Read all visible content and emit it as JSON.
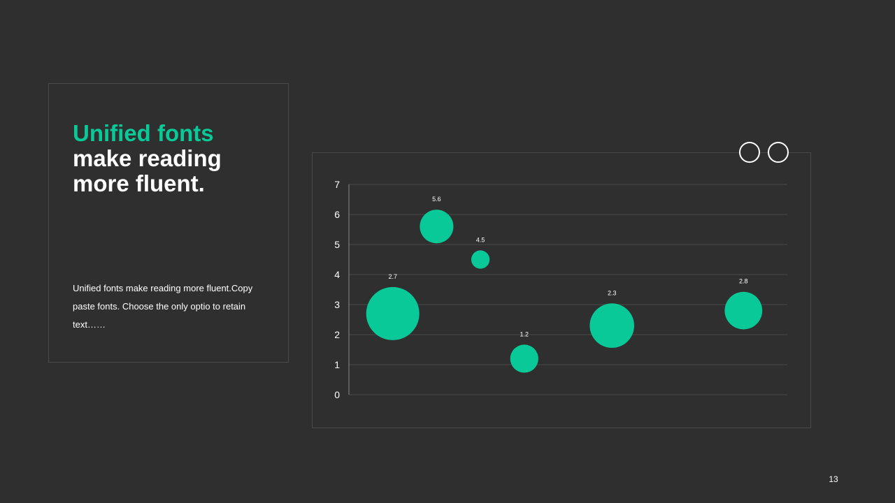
{
  "slide": {
    "heading_accent": "Unified fonts",
    "heading_rest": "make reading more fluent.",
    "body": "Unified fonts make reading more fluent.Copy paste fonts. Choose the only optio to retain text……",
    "page_number": "13"
  },
  "colors": {
    "background": "#2f2f2f",
    "accent": "#08c997",
    "text": "#ffffff",
    "grid": "#4a4a4a"
  },
  "chart_data": {
    "type": "scatter",
    "title": "",
    "xlabel": "",
    "ylabel": "",
    "ylim": [
      0,
      7
    ],
    "yticks": [
      "0",
      "1",
      "2",
      "3",
      "4",
      "5",
      "6",
      "7"
    ],
    "grid": true,
    "legend": "none",
    "points": [
      {
        "x": 1,
        "y": 2.7,
        "size": 10,
        "label": "2.7"
      },
      {
        "x": 2,
        "y": 5.6,
        "size": 4,
        "label": "5.6"
      },
      {
        "x": 3,
        "y": 4.5,
        "size": 1.2,
        "label": "4.5"
      },
      {
        "x": 4,
        "y": 1.2,
        "size": 2.8,
        "label": "1.2"
      },
      {
        "x": 6,
        "y": 2.3,
        "size": 7,
        "label": "2.3"
      },
      {
        "x": 9,
        "y": 2.8,
        "size": 5,
        "label": "2.8"
      }
    ]
  }
}
